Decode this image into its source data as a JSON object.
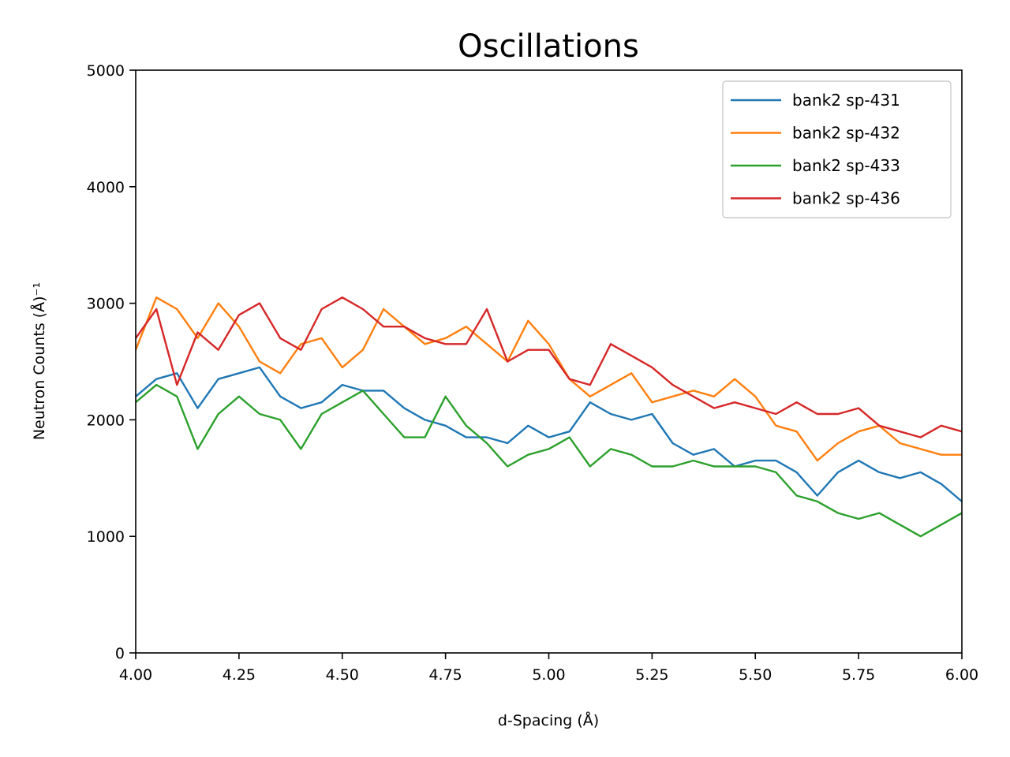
{
  "chart_data": {
    "type": "line",
    "title": "Oscillations",
    "xlabel": "d-Spacing (Å)",
    "ylabel": "Neutron Counts (Å)⁻¹",
    "xlim": [
      4.0,
      6.0
    ],
    "ylim": [
      0,
      5000
    ],
    "x_ticks": [
      4.0,
      4.25,
      4.5,
      4.75,
      5.0,
      5.25,
      5.5,
      5.75,
      6.0
    ],
    "x_tick_labels": [
      "4.00",
      "4.25",
      "4.50",
      "4.75",
      "5.00",
      "5.25",
      "5.50",
      "5.75",
      "6.00"
    ],
    "y_ticks": [
      0,
      1000,
      2000,
      3000,
      4000,
      5000
    ],
    "y_tick_labels": [
      "0",
      "1000",
      "2000",
      "3000",
      "4000",
      "5000"
    ],
    "grid": false,
    "legend_position": "top-right",
    "x": [
      4.0,
      4.05,
      4.1,
      4.15,
      4.2,
      4.25,
      4.3,
      4.35,
      4.4,
      4.45,
      4.5,
      4.55,
      4.6,
      4.65,
      4.7,
      4.75,
      4.8,
      4.85,
      4.9,
      4.95,
      5.0,
      5.05,
      5.1,
      5.15,
      5.2,
      5.25,
      5.3,
      5.35,
      5.4,
      5.45,
      5.5,
      5.55,
      5.6,
      5.65,
      5.7,
      5.75,
      5.8,
      5.85,
      5.9,
      5.95,
      6.0
    ],
    "series": [
      {
        "name": "bank2 sp-431",
        "color": "#1f77b4",
        "values": [
          2200,
          2350,
          2400,
          2100,
          2350,
          2400,
          2450,
          2200,
          2100,
          2150,
          2300,
          2250,
          2250,
          2100,
          2000,
          1950,
          1850,
          1850,
          1800,
          1950,
          1850,
          1900,
          2150,
          2050,
          2000,
          2050,
          1800,
          1700,
          1750,
          1600,
          1650,
          1650,
          1550,
          1350,
          1550,
          1650,
          1550,
          1500,
          1550,
          1450,
          1300
        ]
      },
      {
        "name": "bank2 sp-432",
        "color": "#ff7f0e",
        "values": [
          2600,
          3050,
          2950,
          2700,
          3000,
          2800,
          2500,
          2400,
          2650,
          2700,
          2450,
          2600,
          2950,
          2800,
          2650,
          2700,
          2800,
          2650,
          2500,
          2850,
          2650,
          2350,
          2200,
          2300,
          2400,
          2150,
          2200,
          2250,
          2200,
          2350,
          2200,
          1950,
          1900,
          1650,
          1800,
          1900,
          1950,
          1800,
          1750,
          1700,
          1700
        ]
      },
      {
        "name": "bank2 sp-433",
        "color": "#2ca02c",
        "values": [
          2150,
          2300,
          2200,
          1750,
          2050,
          2200,
          2050,
          2000,
          1750,
          2050,
          2150,
          2250,
          2050,
          1850,
          1850,
          2200,
          1950,
          1800,
          1600,
          1700,
          1750,
          1850,
          1600,
          1750,
          1700,
          1600,
          1600,
          1650,
          1600,
          1600,
          1600,
          1550,
          1350,
          1300,
          1200,
          1150,
          1200,
          1100,
          1000,
          1100,
          1200
        ]
      },
      {
        "name": "bank2 sp-436",
        "color": "#d62728",
        "values": [
          2700,
          2950,
          2300,
          2750,
          2600,
          2900,
          3000,
          2700,
          2600,
          2950,
          3050,
          2950,
          2800,
          2800,
          2700,
          2650,
          2650,
          2950,
          2500,
          2600,
          2600,
          2350,
          2300,
          2650,
          2550,
          2450,
          2300,
          2200,
          2100,
          2150,
          2100,
          2050,
          2150,
          2050,
          2050,
          2100,
          1950,
          1900,
          1850,
          1950,
          1900
        ]
      }
    ]
  }
}
